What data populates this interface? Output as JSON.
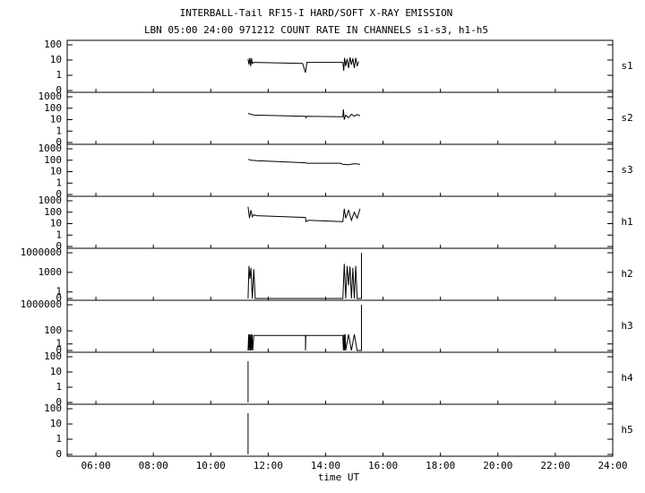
{
  "chart_data": {
    "type": "line",
    "title": "INTERBALL-Tail RF15-I HARD/SOFT X-RAY EMISSION",
    "subtitle": "LBN 05:00 24:00 971212  COUNT RATE IN CHANNELS s1-s3, h1-h5",
    "xlabel": "time UT",
    "yscale": "log",
    "color": "#000000",
    "xlim": [
      5,
      24
    ],
    "xticks": [
      {
        "value": 6,
        "label": "06:00"
      },
      {
        "value": 8,
        "label": "08:00"
      },
      {
        "value": 10,
        "label": "10:00"
      },
      {
        "value": 12,
        "label": "12:00"
      },
      {
        "value": 14,
        "label": "14:00"
      },
      {
        "value": 16,
        "label": "16:00"
      },
      {
        "value": 18,
        "label": "18:00"
      },
      {
        "value": 20,
        "label": "20:00"
      },
      {
        "value": 22,
        "label": "22:00"
      },
      {
        "value": 24,
        "label": "24:00"
      }
    ],
    "panels": [
      {
        "name": "s1",
        "ylim": [
          0,
          100
        ],
        "yticks": [
          0,
          1,
          10,
          100
        ],
        "x": [
          11.3,
          11.33,
          11.36,
          11.39,
          11.42,
          11.45,
          11.5,
          13.2,
          13.25,
          13.3,
          13.35,
          14.6,
          14.63,
          14.66,
          14.7,
          14.75,
          14.8,
          14.85,
          14.9,
          14.95,
          15.0,
          15.05,
          15.1,
          15.15
        ],
        "values": [
          12,
          5,
          14,
          4,
          13,
          6,
          7,
          6,
          3,
          1.5,
          7,
          7,
          2,
          14,
          4,
          12,
          3,
          15,
          5,
          13,
          3,
          14,
          4,
          8
        ]
      },
      {
        "name": "s2",
        "ylim": [
          0,
          1000
        ],
        "yticks": [
          0,
          1,
          10,
          100,
          1000
        ],
        "x": [
          11.3,
          11.4,
          11.5,
          13.3,
          13.32,
          13.34,
          14.6,
          14.62,
          14.65,
          14.7,
          14.8,
          14.9,
          15.0,
          15.1,
          15.2
        ],
        "values": [
          35,
          30,
          25,
          20,
          15,
          20,
          18,
          80,
          10,
          25,
          15,
          30,
          20,
          28,
          22
        ]
      },
      {
        "name": "s3",
        "ylim": [
          0,
          1000
        ],
        "yticks": [
          0,
          1,
          10,
          100,
          1000
        ],
        "x": [
          11.3,
          11.4,
          11.6,
          13.3,
          13.35,
          14.5,
          14.6,
          14.8,
          15.0,
          15.2
        ],
        "values": [
          120,
          100,
          90,
          60,
          55,
          55,
          45,
          40,
          50,
          45
        ]
      },
      {
        "name": "h1",
        "ylim": [
          0,
          1000
        ],
        "yticks": [
          0,
          1,
          10,
          100,
          1000
        ],
        "x": [
          11.3,
          11.35,
          11.4,
          11.45,
          11.5,
          11.6,
          13.3,
          13.32,
          13.4,
          14.6,
          14.65,
          14.7,
          14.8,
          14.9,
          15.0,
          15.1,
          15.2
        ],
        "values": [
          300,
          30,
          150,
          40,
          60,
          50,
          35,
          15,
          20,
          15,
          200,
          30,
          150,
          20,
          100,
          30,
          200
        ]
      },
      {
        "name": "h2",
        "ylim": [
          0,
          1000000
        ],
        "yticks": [
          0,
          1,
          1000,
          1000000
        ],
        "x": [
          11.3,
          11.33,
          11.36,
          11.4,
          11.45,
          11.5,
          11.55,
          14.6,
          14.65,
          14.7,
          14.75,
          14.8,
          14.85,
          14.9,
          14.95,
          15.0,
          15.05,
          15.1,
          15.25,
          15.25
        ],
        "values": [
          0,
          10000,
          100,
          5000,
          0,
          3000,
          0,
          0,
          20000,
          0,
          10000,
          10,
          8000,
          0,
          5000,
          0,
          10000,
          0,
          0,
          1000000
        ]
      },
      {
        "name": "h3",
        "ylim": [
          0,
          1000000
        ],
        "yticks": [
          0,
          1,
          100,
          1000000
        ],
        "x": [
          11.3,
          11.32,
          11.34,
          11.36,
          11.38,
          11.4,
          11.42,
          11.44,
          11.46,
          11.5,
          13.3,
          13.3,
          13.31,
          14.6,
          14.62,
          14.64,
          14.66,
          14.68,
          14.7,
          14.8,
          14.9,
          15.0,
          15.1,
          15.25,
          15.25
        ],
        "values": [
          0,
          30,
          0,
          30,
          0,
          30,
          0,
          30,
          0,
          20,
          20,
          0,
          20,
          20,
          0,
          30,
          0,
          30,
          0,
          30,
          0,
          30,
          0,
          0,
          1000000
        ]
      },
      {
        "name": "h4",
        "ylim": [
          0,
          100
        ],
        "yticks": [
          0,
          1,
          10,
          100
        ],
        "x": [
          11.3,
          11.3
        ],
        "values": [
          0,
          50
        ]
      },
      {
        "name": "h5",
        "ylim": [
          0,
          100
        ],
        "yticks": [
          0,
          1,
          10,
          100
        ],
        "x": [
          11.3,
          11.3
        ],
        "values": [
          0,
          50
        ]
      }
    ]
  }
}
